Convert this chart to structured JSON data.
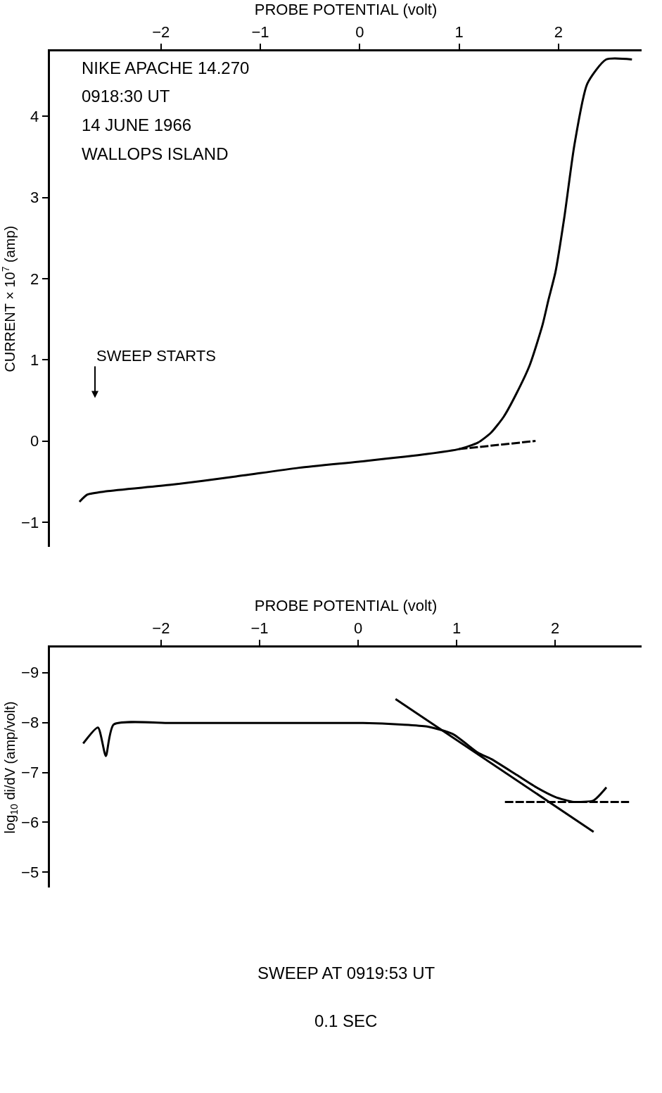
{
  "chart_data": [
    {
      "type": "line",
      "xlabel": "PROBE POTENTIAL (volt)",
      "ylabel": "CURRENT × 10$^{7}$ (amp)",
      "annotations": [
        "NIKE APACHE 14.270",
        "0918:30 UT",
        "14 JUNE 1966",
        "WALLOPS ISLAND",
        "SWEEP STARTS"
      ],
      "xlim": [
        -3.12,
        2.84
      ],
      "xticks": [
        -2,
        -1,
        0,
        1,
        2
      ],
      "ylim": [
        -1.3,
        4.8
      ],
      "yticks": [
        -1,
        0,
        1,
        2,
        3,
        4
      ],
      "series": [
        {
          "color": "#000000",
          "line_style": "solid",
          "x": [
            -2.82,
            -2.74,
            -2.55,
            -1.9,
            -1.26,
            -0.61,
            0.03,
            0.68,
            1.0,
            1.19,
            1.32,
            1.45,
            1.58,
            1.71,
            1.84,
            1.9,
            1.97,
            2.06,
            2.16,
            2.29,
            2.48,
            2.74
          ],
          "values": [
            -0.75,
            -0.66,
            -0.62,
            -0.54,
            -0.44,
            -0.33,
            -0.25,
            -0.16,
            -0.1,
            -0.02,
            0.1,
            0.3,
            0.59,
            0.93,
            1.43,
            1.74,
            2.08,
            2.76,
            3.64,
            4.4,
            4.7,
            4.7
          ]
        },
        {
          "color": "#000000",
          "line_style": "dashed",
          "x": [
            1.0,
            1.77
          ],
          "values": [
            -0.1,
            0.0
          ]
        }
      ]
    },
    {
      "type": "line",
      "xlabel": "PROBE POTENTIAL (volt)",
      "ylabel": "log$_{10}$ di/dV (amp/volt)",
      "annotations": [
        "SWEEP AT 0919:53 UT",
        "0.1 SEC"
      ],
      "xlim": [
        -3.13,
        2.88
      ],
      "xticks": [
        -2,
        -1,
        0,
        1,
        2
      ],
      "ylim": [
        -4.7,
        -9.5
      ],
      "yticks": [
        -9,
        -8,
        -7,
        -6,
        -5
      ],
      "series": [
        {
          "color": "#000000",
          "line_style": "solid",
          "x": [
            -2.79,
            -2.64,
            -2.56,
            -2.48,
            -1.9,
            -1.25,
            -0.6,
            0.05,
            0.44,
            0.7,
            0.96,
            1.22,
            1.35,
            1.61,
            1.81,
            2.0,
            2.19,
            2.39,
            2.52
          ],
          "values": [
            -7.58,
            -7.9,
            -7.33,
            -7.96,
            -7.99,
            -7.99,
            -7.99,
            -7.99,
            -7.96,
            -7.92,
            -7.77,
            -7.39,
            -7.27,
            -6.95,
            -6.7,
            -6.51,
            -6.41,
            -6.44,
            -6.7
          ]
        },
        {
          "color": "#000000",
          "line_style": "solid",
          "x": [
            0.38,
            2.39
          ],
          "values": [
            -8.47,
            -5.81
          ]
        },
        {
          "color": "#000000",
          "line_style": "dashed",
          "x": [
            1.49,
            2.75
          ],
          "values": [
            -6.41,
            -6.41
          ]
        }
      ]
    }
  ]
}
